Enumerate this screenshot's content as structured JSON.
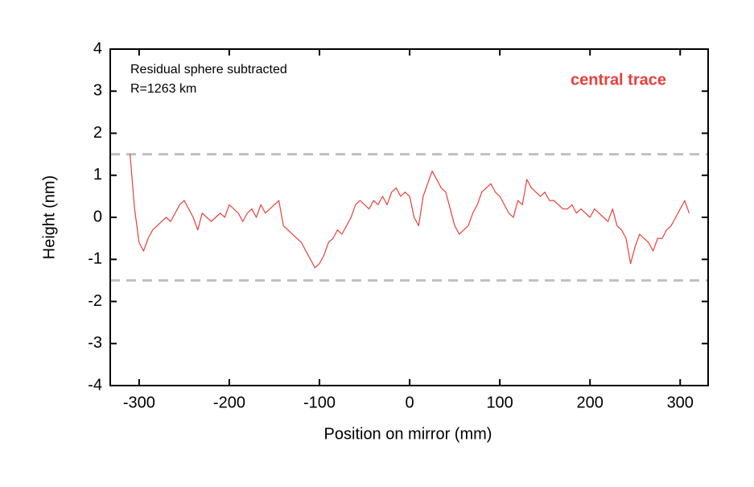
{
  "chart_data": {
    "type": "line",
    "x_label": "Position on mirror (mm)",
    "y_label": "Height (nm)",
    "annotations": [
      "Residual sphere subtracted",
      "R=1263 km"
    ],
    "series": [
      {
        "name": "central trace",
        "color": "#e8403c",
        "x": [
          -310,
          -305,
          -300,
          -295,
          -290,
          -285,
          -280,
          -275,
          -270,
          -265,
          -260,
          -255,
          -250,
          -245,
          -240,
          -235,
          -230,
          -225,
          -220,
          -215,
          -210,
          -205,
          -200,
          -195,
          -190,
          -185,
          -180,
          -175,
          -170,
          -165,
          -160,
          -155,
          -150,
          -145,
          -140,
          -135,
          -130,
          -125,
          -120,
          -115,
          -110,
          -105,
          -100,
          -95,
          -90,
          -85,
          -80,
          -75,
          -70,
          -65,
          -60,
          -55,
          -50,
          -45,
          -40,
          -35,
          -30,
          -25,
          -20,
          -15,
          -10,
          -5,
          0,
          5,
          10,
          15,
          20,
          25,
          30,
          35,
          40,
          45,
          50,
          55,
          60,
          65,
          70,
          75,
          80,
          85,
          90,
          95,
          100,
          105,
          110,
          115,
          120,
          125,
          130,
          135,
          140,
          145,
          150,
          155,
          160,
          165,
          170,
          175,
          180,
          185,
          190,
          195,
          200,
          205,
          210,
          215,
          220,
          225,
          230,
          235,
          240,
          245,
          250,
          255,
          260,
          265,
          270,
          275,
          280,
          285,
          290,
          295,
          300,
          305,
          310
        ],
        "values": [
          1.5,
          0.2,
          -0.6,
          -0.8,
          -0.5,
          -0.3,
          -0.2,
          -0.1,
          0.0,
          -0.1,
          0.1,
          0.3,
          0.4,
          0.2,
          0.0,
          -0.3,
          0.1,
          0.0,
          -0.1,
          0.0,
          0.1,
          0.0,
          0.3,
          0.2,
          0.1,
          -0.1,
          0.1,
          0.2,
          0.0,
          0.3,
          0.1,
          0.2,
          0.3,
          0.4,
          -0.2,
          -0.3,
          -0.4,
          -0.5,
          -0.6,
          -0.8,
          -1.0,
          -1.2,
          -1.1,
          -0.9,
          -0.6,
          -0.5,
          -0.3,
          -0.4,
          -0.2,
          0.0,
          0.3,
          0.4,
          0.3,
          0.2,
          0.4,
          0.3,
          0.5,
          0.3,
          0.6,
          0.7,
          0.5,
          0.6,
          0.5,
          0.0,
          -0.2,
          0.5,
          0.8,
          1.1,
          0.9,
          0.7,
          0.6,
          0.2,
          -0.2,
          -0.4,
          -0.3,
          -0.2,
          0.1,
          0.3,
          0.6,
          0.7,
          0.8,
          0.6,
          0.5,
          0.3,
          0.1,
          0.0,
          0.4,
          0.3,
          0.9,
          0.7,
          0.6,
          0.5,
          0.6,
          0.4,
          0.4,
          0.3,
          0.2,
          0.2,
          0.3,
          0.1,
          0.2,
          0.1,
          0.0,
          0.2,
          0.1,
          0.0,
          -0.1,
          0.2,
          -0.2,
          -0.3,
          -0.5,
          -1.1,
          -0.7,
          -0.4,
          -0.5,
          -0.6,
          -0.8,
          -0.5,
          -0.5,
          -0.3,
          -0.2,
          0.0,
          0.2,
          0.4,
          0.1
        ]
      }
    ],
    "reference_lines": [
      1.5,
      -1.5
    ],
    "reference_color": "#c0c0c0",
    "xlim": [
      -332,
      331
    ],
    "ylim": [
      -4,
      4
    ],
    "xticks": [
      -300,
      -200,
      -100,
      0,
      100,
      200,
      300
    ],
    "yticks": [
      -4,
      -3,
      -2,
      -1,
      0,
      1,
      2,
      3,
      4
    ]
  }
}
